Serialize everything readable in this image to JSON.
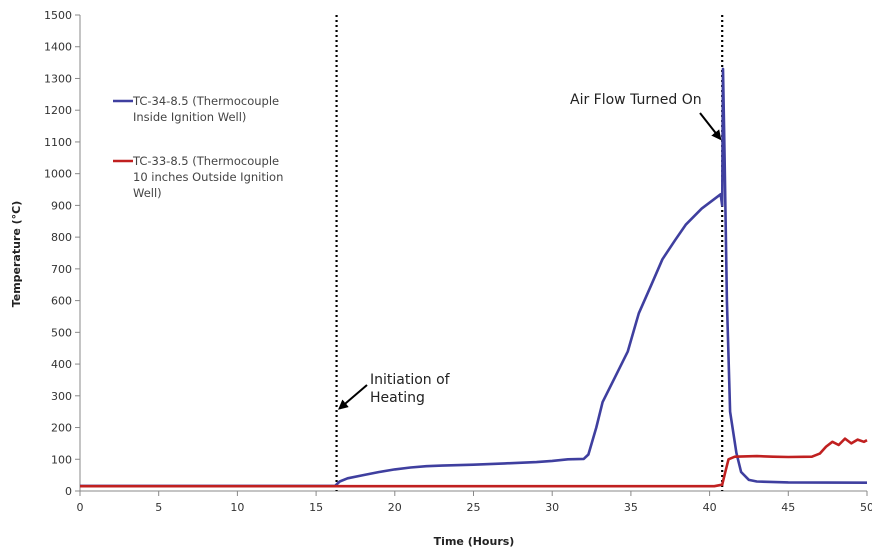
{
  "chart_data": {
    "type": "line",
    "title": "",
    "xlabel": "Time (Hours)",
    "ylabel": "Temperature (°C)",
    "xlim": [
      0,
      50
    ],
    "ylim": [
      0,
      1500
    ],
    "xticks": [
      0,
      5,
      10,
      15,
      20,
      25,
      30,
      35,
      40,
      45,
      50
    ],
    "yticks": [
      0,
      100,
      200,
      300,
      400,
      500,
      600,
      700,
      800,
      900,
      1000,
      1100,
      1200,
      1300,
      1400,
      1500
    ],
    "grid": false,
    "legend_position": "left",
    "series": [
      {
        "name": "TC-34-8.5 (Thermocouple Inside Ignition Well)",
        "legend_lines": [
          "TC-34-8.5 (Thermocouple",
          "Inside Ignition Well)"
        ],
        "color": "#3f3f9f",
        "points": [
          [
            0,
            16
          ],
          [
            16.2,
            16
          ],
          [
            16.5,
            30
          ],
          [
            17,
            40
          ],
          [
            18,
            50
          ],
          [
            19,
            60
          ],
          [
            20,
            68
          ],
          [
            21,
            74
          ],
          [
            22,
            78
          ],
          [
            23,
            80
          ],
          [
            25,
            83
          ],
          [
            27,
            87
          ],
          [
            29,
            91
          ],
          [
            30,
            95
          ],
          [
            31,
            100
          ],
          [
            32,
            101
          ],
          [
            32.3,
            115
          ],
          [
            32.8,
            200
          ],
          [
            33.2,
            280
          ],
          [
            34,
            360
          ],
          [
            34.8,
            440
          ],
          [
            35.5,
            560
          ],
          [
            36.3,
            650
          ],
          [
            37,
            730
          ],
          [
            37.8,
            790
          ],
          [
            38.5,
            840
          ],
          [
            39.5,
            890
          ],
          [
            40.3,
            920
          ],
          [
            40.7,
            935
          ],
          [
            40.8,
            900
          ],
          [
            40.85,
            1330
          ],
          [
            40.95,
            1050
          ],
          [
            41.1,
            600
          ],
          [
            41.3,
            250
          ],
          [
            41.7,
            120
          ],
          [
            42,
            60
          ],
          [
            42.5,
            35
          ],
          [
            43,
            30
          ],
          [
            45,
            27
          ],
          [
            50,
            26
          ]
        ]
      },
      {
        "name": "TC-33-8.5 (Thermocouple 10 inches Outside Ignition Well)",
        "legend_lines": [
          "TC-33-8.5 (Thermocouple",
          "10 inches  Outside Ignition",
          "Well)"
        ],
        "color": "#c02020",
        "points": [
          [
            0,
            15
          ],
          [
            40.3,
            15
          ],
          [
            40.8,
            20
          ],
          [
            41.0,
            60
          ],
          [
            41.2,
            100
          ],
          [
            41.6,
            108
          ],
          [
            43,
            110
          ],
          [
            44,
            108
          ],
          [
            45,
            107
          ],
          [
            46.5,
            108
          ],
          [
            47,
            118
          ],
          [
            47.4,
            140
          ],
          [
            47.8,
            155
          ],
          [
            48.2,
            145
          ],
          [
            48.6,
            165
          ],
          [
            49,
            150
          ],
          [
            49.4,
            162
          ],
          [
            49.8,
            155
          ],
          [
            50,
            160
          ]
        ]
      }
    ],
    "vlines": [
      16.3,
      40.8
    ],
    "annotations": [
      {
        "lines": [
          "Initiation of",
          "Heating"
        ],
        "target": [
          16.3,
          260
        ]
      },
      {
        "lines": [
          "Air Flow Turned On"
        ],
        "target": [
          40.8,
          1110
        ]
      }
    ]
  }
}
